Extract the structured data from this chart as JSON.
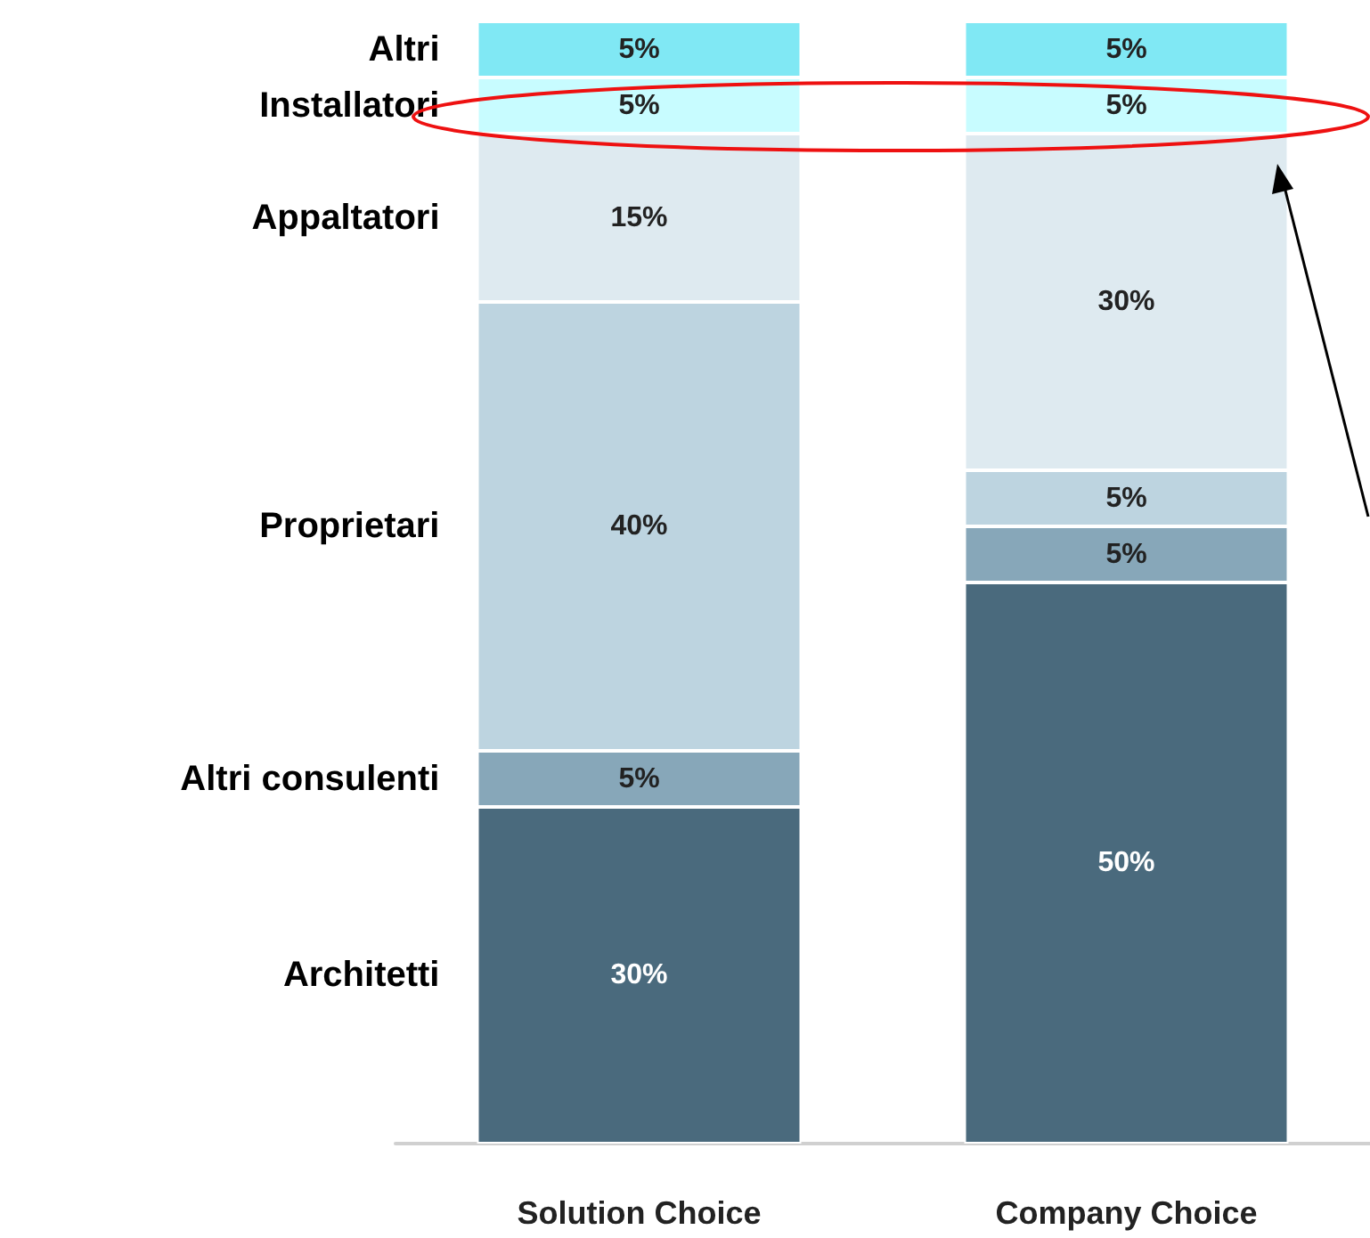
{
  "chart_data": {
    "type": "bar",
    "stacked": true,
    "categories": [
      "Solution Choice",
      "Company Choice"
    ],
    "grid": false,
    "legend": false,
    "series": [
      {
        "name": "Architetti",
        "color": "#4a6a7d",
        "values": [
          30,
          50
        ],
        "value_labels": [
          "30%",
          "50%"
        ]
      },
      {
        "name": "Altri consulenti",
        "color": "#87a7b9",
        "values": [
          5,
          5
        ],
        "value_labels": [
          "5%",
          "5%"
        ]
      },
      {
        "name": "Proprietari",
        "color": "#bdd4e0",
        "values": [
          40,
          5
        ],
        "value_labels": [
          "40%",
          "5%"
        ]
      },
      {
        "name": "Appaltatori",
        "color": "#deeaf0",
        "values": [
          15,
          30
        ],
        "value_labels": [
          "15%",
          "30%"
        ]
      },
      {
        "name": "Installatori",
        "color": "#c8fcff",
        "values": [
          5,
          5
        ],
        "value_labels": [
          "5%",
          "5%"
        ]
      },
      {
        "name": "Altri",
        "color": "#80e8f4",
        "values": [
          5,
          5
        ],
        "value_labels": [
          "5%",
          "5%"
        ]
      }
    ]
  }
}
